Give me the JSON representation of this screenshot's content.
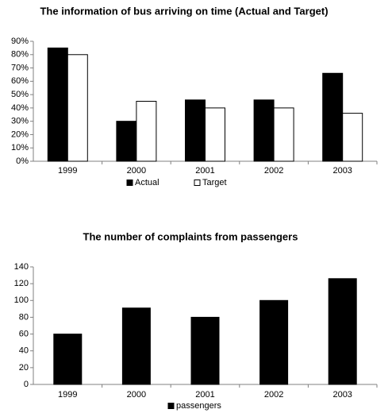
{
  "chart_data": [
    {
      "type": "bar",
      "title": "The information of bus arriving on time (Actual and Target)",
      "categories": [
        "1999",
        "2000",
        "2001",
        "2002",
        "2003"
      ],
      "series": [
        {
          "name": "Actual",
          "color": "#000000",
          "values": [
            85,
            30,
            46,
            46,
            66
          ]
        },
        {
          "name": "Target",
          "color": "#ffffff",
          "values": [
            80,
            45,
            40,
            40,
            36
          ]
        }
      ],
      "ylim": [
        0,
        90
      ],
      "yticks": [
        {
          "value": 0,
          "label": "0%"
        },
        {
          "value": 10,
          "label": "10%"
        },
        {
          "value": 20,
          "label": "20%"
        },
        {
          "value": 30,
          "label": "30%"
        },
        {
          "value": 40,
          "label": "40%"
        },
        {
          "value": 50,
          "label": "50%"
        },
        {
          "value": 60,
          "label": "60%"
        },
        {
          "value": 70,
          "label": "70%"
        },
        {
          "value": 80,
          "label": "80%"
        },
        {
          "value": 90,
          "label": "90%"
        }
      ],
      "grid": false
    },
    {
      "type": "bar",
      "title": "The number of complaints from passengers",
      "categories": [
        "1999",
        "2000",
        "2001",
        "2002",
        "2003"
      ],
      "series": [
        {
          "name": "passengers",
          "color": "#000000",
          "values": [
            60,
            91,
            80,
            100,
            126
          ]
        }
      ],
      "ylim": [
        0,
        140
      ],
      "yticks": [
        0,
        20,
        40,
        60,
        80,
        100,
        120,
        140
      ],
      "grid": false
    }
  ]
}
